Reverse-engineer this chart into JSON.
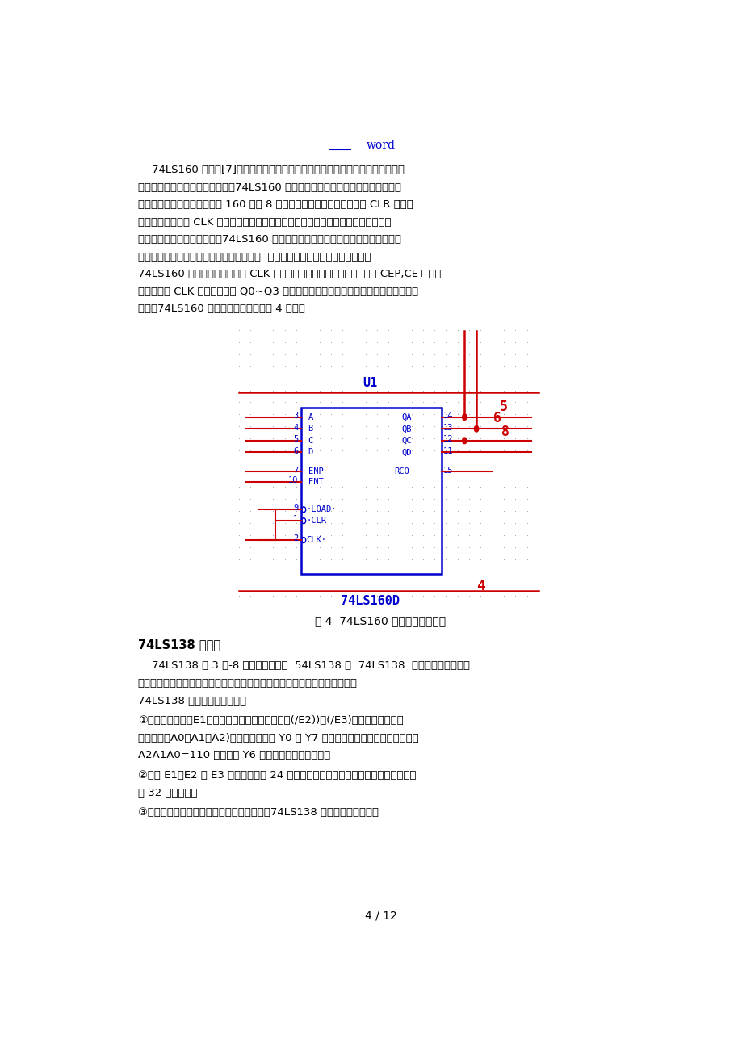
{
  "bg_color": "#ffffff",
  "page_width": 9.2,
  "page_height": 13.02,
  "header_text": "word",
  "para1": "    74LS160 计数器[7]不仅用于对时钟脉冲计数，还可以用于分频，定时，产生节",
  "para2": "拍脉冲和脉冲序列以与数字运算。74LS160 是同步置数，异步清零的十进制计数器。",
  "para3": "本次试验利用了同步置数法将 160 接成 8 进制以实现控制循环。当清零端 CLR 为低电",
  "para4": "平时，不管时钟端 CLK 状态如何，即可完成清零功能，并且使得清零端为低电平的状",
  "para5": "态的时间极短，故较为稳定。74LS160 的预置是同步的。当置入控制器为低电平时，",
  "para6": "必须等下一个时钟信号到达，才能将其置零  ，故该状态包含在稳定的循环状态内",
  "para7": "74LS160 的计数是同步的，靠 CLK 同时加在四个触发器上而实现的。当 CEP,CET 为高",
  "para8": "电平时，在 CLK 上升沿作用下 Q0~Q3 同时变化，从而消除了异步计数器中出现的计数",
  "para9": "尖峰。74LS160 接成的同步计数器如图 4 所示。",
  "fig_caption": "图 4  74LS160 同步计数器引脚图",
  "section_title": "74LS138 译码器",
  "sec_para1": "    74LS138 为 3 线-8 线译码器。共有  54LS138 和  74LS138  两种线路结构型式。",
  "sec_para2": "译码器是将每个输入的二进制代码译成对应输出上下电平信号或另一个代码。",
  "sec_para3": "74LS138 译码器的工作原理：",
  "sec_para4": "①当一个选通端（E1）为高电平，另两个选通端（(/E2))和(/E3)）为低电平时，可",
  "sec_para5": "将地址端（A0、A1、A2)的二进制编码在 Y0 至 Y7 对应的输出端以低电平译出。比如",
  "sec_para6": "A2A1A0=110 时，如此 Y6 输出端输出低电平信号。",
  "sec_para7": "②利用 E1、E2 和 E3 可级联扩展成 24 线译码器；假设外接一个反相器还可级联扩展",
  "sec_para8": "成 32 线译码器。",
  "sec_para9": "③假设将选通端中的一个作为数据输入端时，74LS138 还可作数据分配器。",
  "page_num": "4 / 12",
  "text_color": "#000000",
  "blue_color": "#0000cd",
  "red_color": "#cc0000"
}
